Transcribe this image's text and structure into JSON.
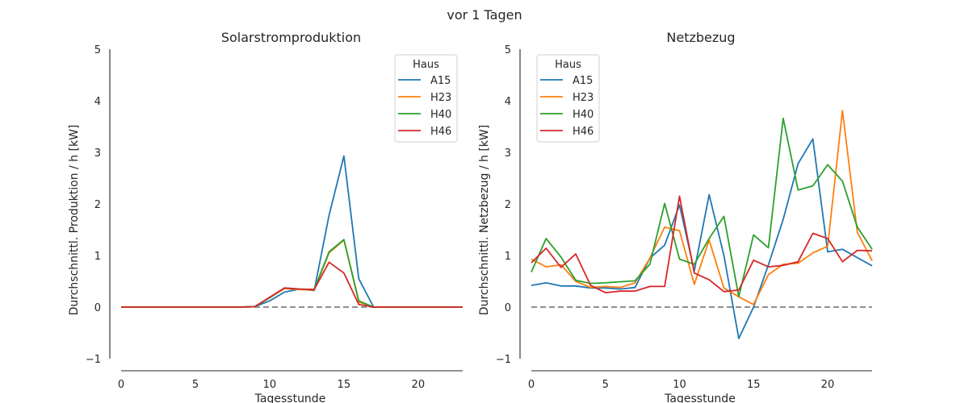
{
  "figure_title": "vor 1 Tagen",
  "chart_data": [
    {
      "type": "line",
      "title": "Solarstromproduktion",
      "xlabel": "Tagesstunde",
      "ylabel": "Durchschnittl. Produktion / h [kW]",
      "xlim": [
        -0.8,
        23
      ],
      "ylim": [
        -1.2,
        5
      ],
      "xticks": [
        0,
        5,
        10,
        15,
        20
      ],
      "yticks": [
        -1,
        0,
        1,
        2,
        3,
        4,
        5
      ],
      "legend_title": "Haus",
      "legend_position": "top-right",
      "x": [
        0,
        1,
        2,
        3,
        4,
        5,
        6,
        7,
        8,
        9,
        10,
        11,
        12,
        13,
        14,
        15,
        16,
        17,
        18,
        19,
        20,
        21,
        22,
        23
      ],
      "series": [
        {
          "name": "A15",
          "color": "#1f77b4",
          "values": [
            0,
            0,
            0,
            0,
            0,
            0,
            0,
            0,
            0,
            0.01,
            0.12,
            0.29,
            0.35,
            0.32,
            1.78,
            2.93,
            0.55,
            0,
            0,
            0,
            0,
            0,
            0,
            0
          ]
        },
        {
          "name": "H23",
          "color": "#ff7f0e",
          "values": [
            0,
            0,
            0,
            0,
            0,
            0,
            0,
            0,
            0,
            0.01,
            0.18,
            0.36,
            0.34,
            0.33,
            1.05,
            1.3,
            0.1,
            0,
            0,
            0,
            0,
            0,
            0,
            0
          ]
        },
        {
          "name": "H40",
          "color": "#2ca02c",
          "values": [
            0,
            0,
            0,
            0,
            0,
            0,
            0,
            0,
            0,
            0.01,
            0.18,
            0.37,
            0.35,
            0.34,
            1.07,
            1.31,
            0.12,
            0,
            0,
            0,
            0,
            0,
            0,
            0
          ]
        },
        {
          "name": "H46",
          "color": "#d62728",
          "values": [
            0,
            0,
            0,
            0,
            0,
            0,
            0,
            0,
            0,
            0.01,
            0.19,
            0.37,
            0.35,
            0.34,
            0.87,
            0.66,
            0.05,
            0,
            0,
            0,
            0,
            0,
            0,
            0
          ]
        }
      ]
    },
    {
      "type": "line",
      "title": "Netzbezug",
      "xlabel": "Tagesstunde",
      "ylabel": "Durchschnittl. Netzbezug / h [kW]",
      "xlim": [
        -0.8,
        23
      ],
      "ylim": [
        -1.2,
        5
      ],
      "xticks": [
        0,
        5,
        10,
        15,
        20
      ],
      "yticks": [
        -1,
        0,
        1,
        2,
        3,
        4,
        5
      ],
      "legend_title": "Haus",
      "legend_position": "top-left",
      "x": [
        0,
        1,
        2,
        3,
        4,
        5,
        6,
        7,
        8,
        9,
        10,
        11,
        12,
        13,
        14,
        15,
        16,
        17,
        18,
        19,
        20,
        21,
        22,
        23
      ],
      "series": [
        {
          "name": "A15",
          "color": "#1f77b4",
          "values": [
            0.42,
            0.47,
            0.41,
            0.41,
            0.37,
            0.37,
            0.35,
            0.38,
            0.95,
            1.2,
            1.98,
            0.7,
            2.18,
            1.0,
            -0.61,
            0.0,
            0.82,
            1.7,
            2.78,
            3.26,
            1.07,
            1.12,
            0.96,
            0.8
          ]
        },
        {
          "name": "H23",
          "color": "#ff7f0e",
          "values": [
            0.93,
            0.78,
            0.82,
            0.5,
            0.38,
            0.4,
            0.38,
            0.47,
            0.95,
            1.55,
            1.48,
            0.44,
            1.3,
            0.37,
            0.2,
            0.05,
            0.63,
            0.83,
            0.85,
            1.05,
            1.18,
            3.81,
            1.45,
            0.9
          ]
        },
        {
          "name": "H40",
          "color": "#2ca02c",
          "values": [
            0.68,
            1.33,
            0.97,
            0.52,
            0.46,
            0.47,
            0.49,
            0.51,
            0.83,
            2.01,
            0.93,
            0.83,
            1.33,
            1.76,
            0.2,
            1.4,
            1.15,
            3.66,
            2.27,
            2.35,
            2.76,
            2.44,
            1.55,
            1.12
          ]
        },
        {
          "name": "H46",
          "color": "#d62728",
          "values": [
            0.86,
            1.14,
            0.77,
            1.03,
            0.42,
            0.28,
            0.31,
            0.31,
            0.4,
            0.4,
            2.15,
            0.66,
            0.53,
            0.3,
            0.33,
            0.91,
            0.78,
            0.81,
            0.88,
            1.43,
            1.33,
            0.88,
            1.1,
            1.09
          ]
        }
      ]
    }
  ]
}
